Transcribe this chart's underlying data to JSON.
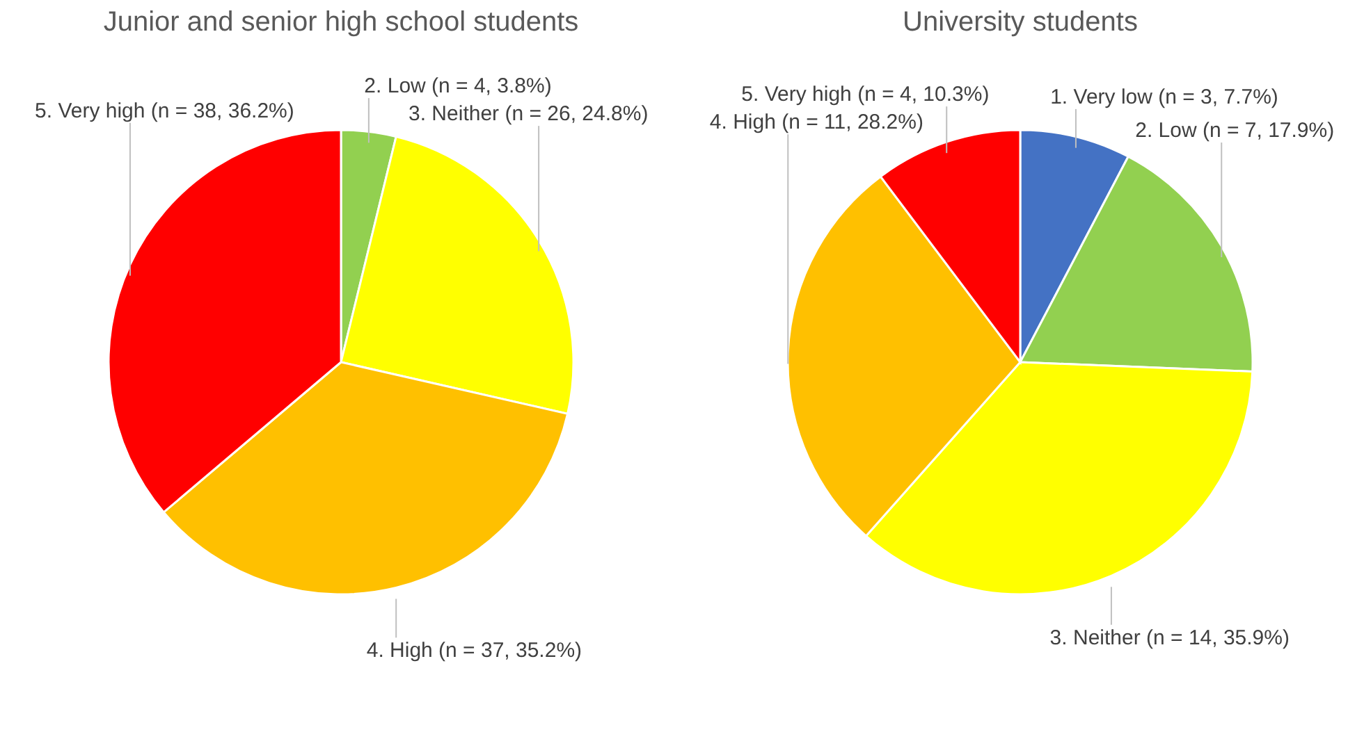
{
  "chart_data": [
    {
      "type": "pie",
      "title": "Junior and senior high school students",
      "categories": [
        "2. Low",
        "3. Neither",
        "4. High",
        "5. Very high"
      ],
      "values": [
        4,
        26,
        37,
        38
      ],
      "colors": [
        "#92d050",
        "#ffff00",
        "#ffc000",
        "#ff0000"
      ],
      "value_labels": [
        "(n = 4, 3.8%)",
        "(n = 26, 24.8%)",
        "(n = 37, 35.2%)",
        "(n = 38, 36.2%)"
      ]
    },
    {
      "type": "pie",
      "title": "University students",
      "categories": [
        "1. Very low",
        "2. Low",
        "3. Neither",
        "4. High",
        "5. Very high"
      ],
      "values": [
        3,
        7,
        14,
        11,
        4
      ],
      "colors": [
        "#4472c4",
        "#92d050",
        "#ffff00",
        "#ffc000",
        "#ff0000"
      ],
      "value_labels": [
        "(n = 3, 7.7%)",
        "(n = 7, 17.9%)",
        "(n = 14, 35.9%)",
        "(n = 11, 28.2%)",
        "(n = 4, 10.3%)"
      ]
    }
  ]
}
